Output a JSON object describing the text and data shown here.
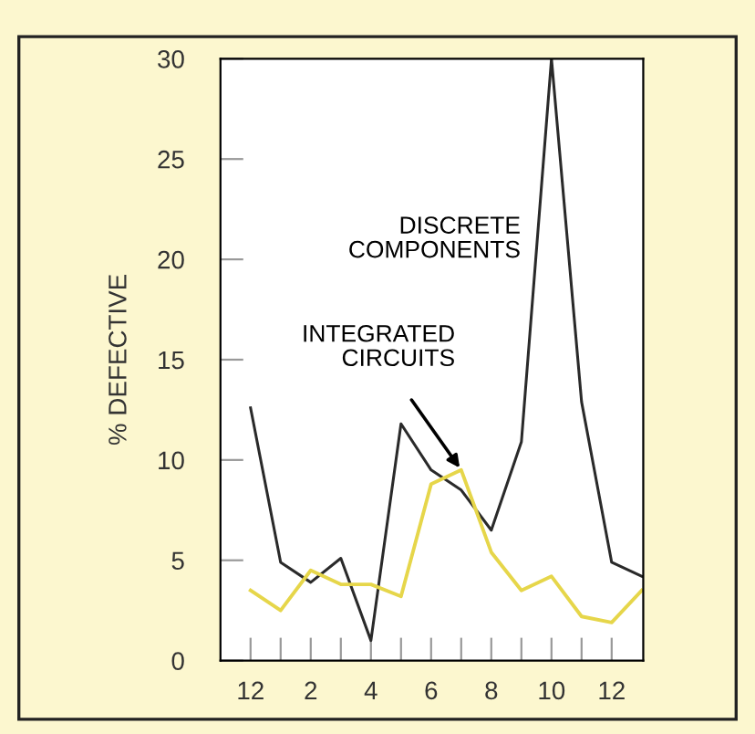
{
  "chart_data": {
    "type": "line",
    "ylabel": "% DEFECTIVE",
    "categories": [
      "12",
      null,
      "2",
      null,
      "4",
      null,
      "6",
      null,
      "8",
      null,
      "10",
      null,
      "12",
      null
    ],
    "ylim": [
      0,
      30
    ],
    "yticks": [
      0,
      5,
      10,
      15,
      20,
      25,
      30
    ],
    "grid": false,
    "legend": false,
    "marker": "none",
    "line_style": "solid",
    "series": [
      {
        "color": "#2a2a2a",
        "values": [
          12.6,
          4.9,
          3.9,
          5.1,
          1.0,
          11.8,
          9.5,
          8.5,
          6.5,
          10.9,
          30,
          12.9,
          4.9,
          4.2
        ]
      },
      {
        "color": "#e6d64a",
        "values": [
          3.5,
          2.5,
          4.5,
          3.8,
          3.8,
          3.2,
          8.8,
          9.5,
          5.4,
          3.5,
          4.2,
          2.2,
          1.9,
          3.5
        ]
      }
    ],
    "annotations": [
      "DISCRETE\nCOMPONENTS",
      "INTEGRATED\nCIRCUITS"
    ]
  }
}
